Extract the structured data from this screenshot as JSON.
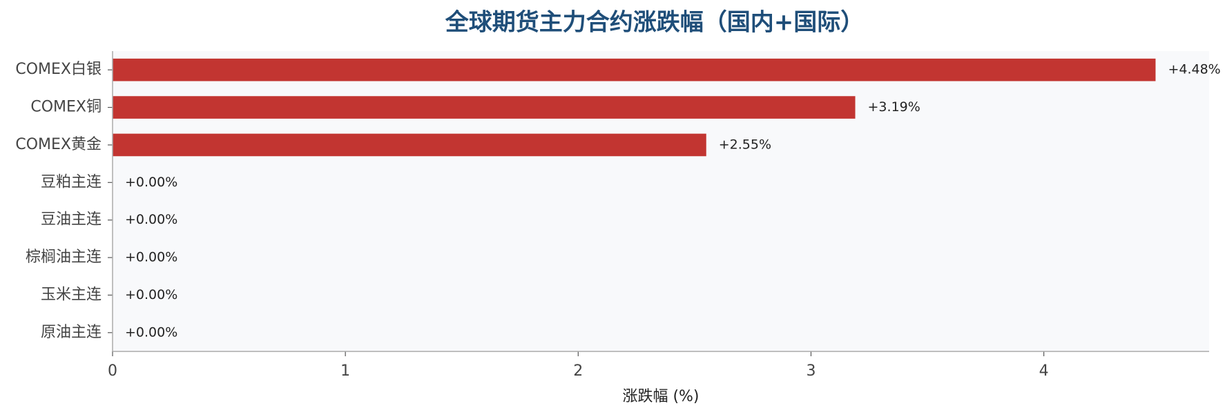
{
  "chart_data": {
    "type": "barh",
    "title": "全球期货主力合约涨跌幅（国内+国际）",
    "x_label": "涨跌幅 (%)",
    "categories": [
      "COMEX白银",
      "COMEX铜",
      "COMEX黄金",
      "豆粕主连",
      "豆油主连",
      "棕榈油主连",
      "玉米主连",
      "原油主连"
    ],
    "values": [
      4.48,
      3.19,
      2.55,
      0,
      0,
      0,
      0,
      0
    ],
    "value_labels": [
      "+4.48%",
      "+3.19%",
      "+2.55%",
      "+0.00%",
      "+0.00%",
      "+0.00%",
      "+0.00%",
      "+0.00%"
    ],
    "color": "#c23531",
    "xlim": [
      0,
      4.71
    ],
    "xticks": [
      0,
      1,
      2,
      3,
      4
    ],
    "grid": false
  }
}
